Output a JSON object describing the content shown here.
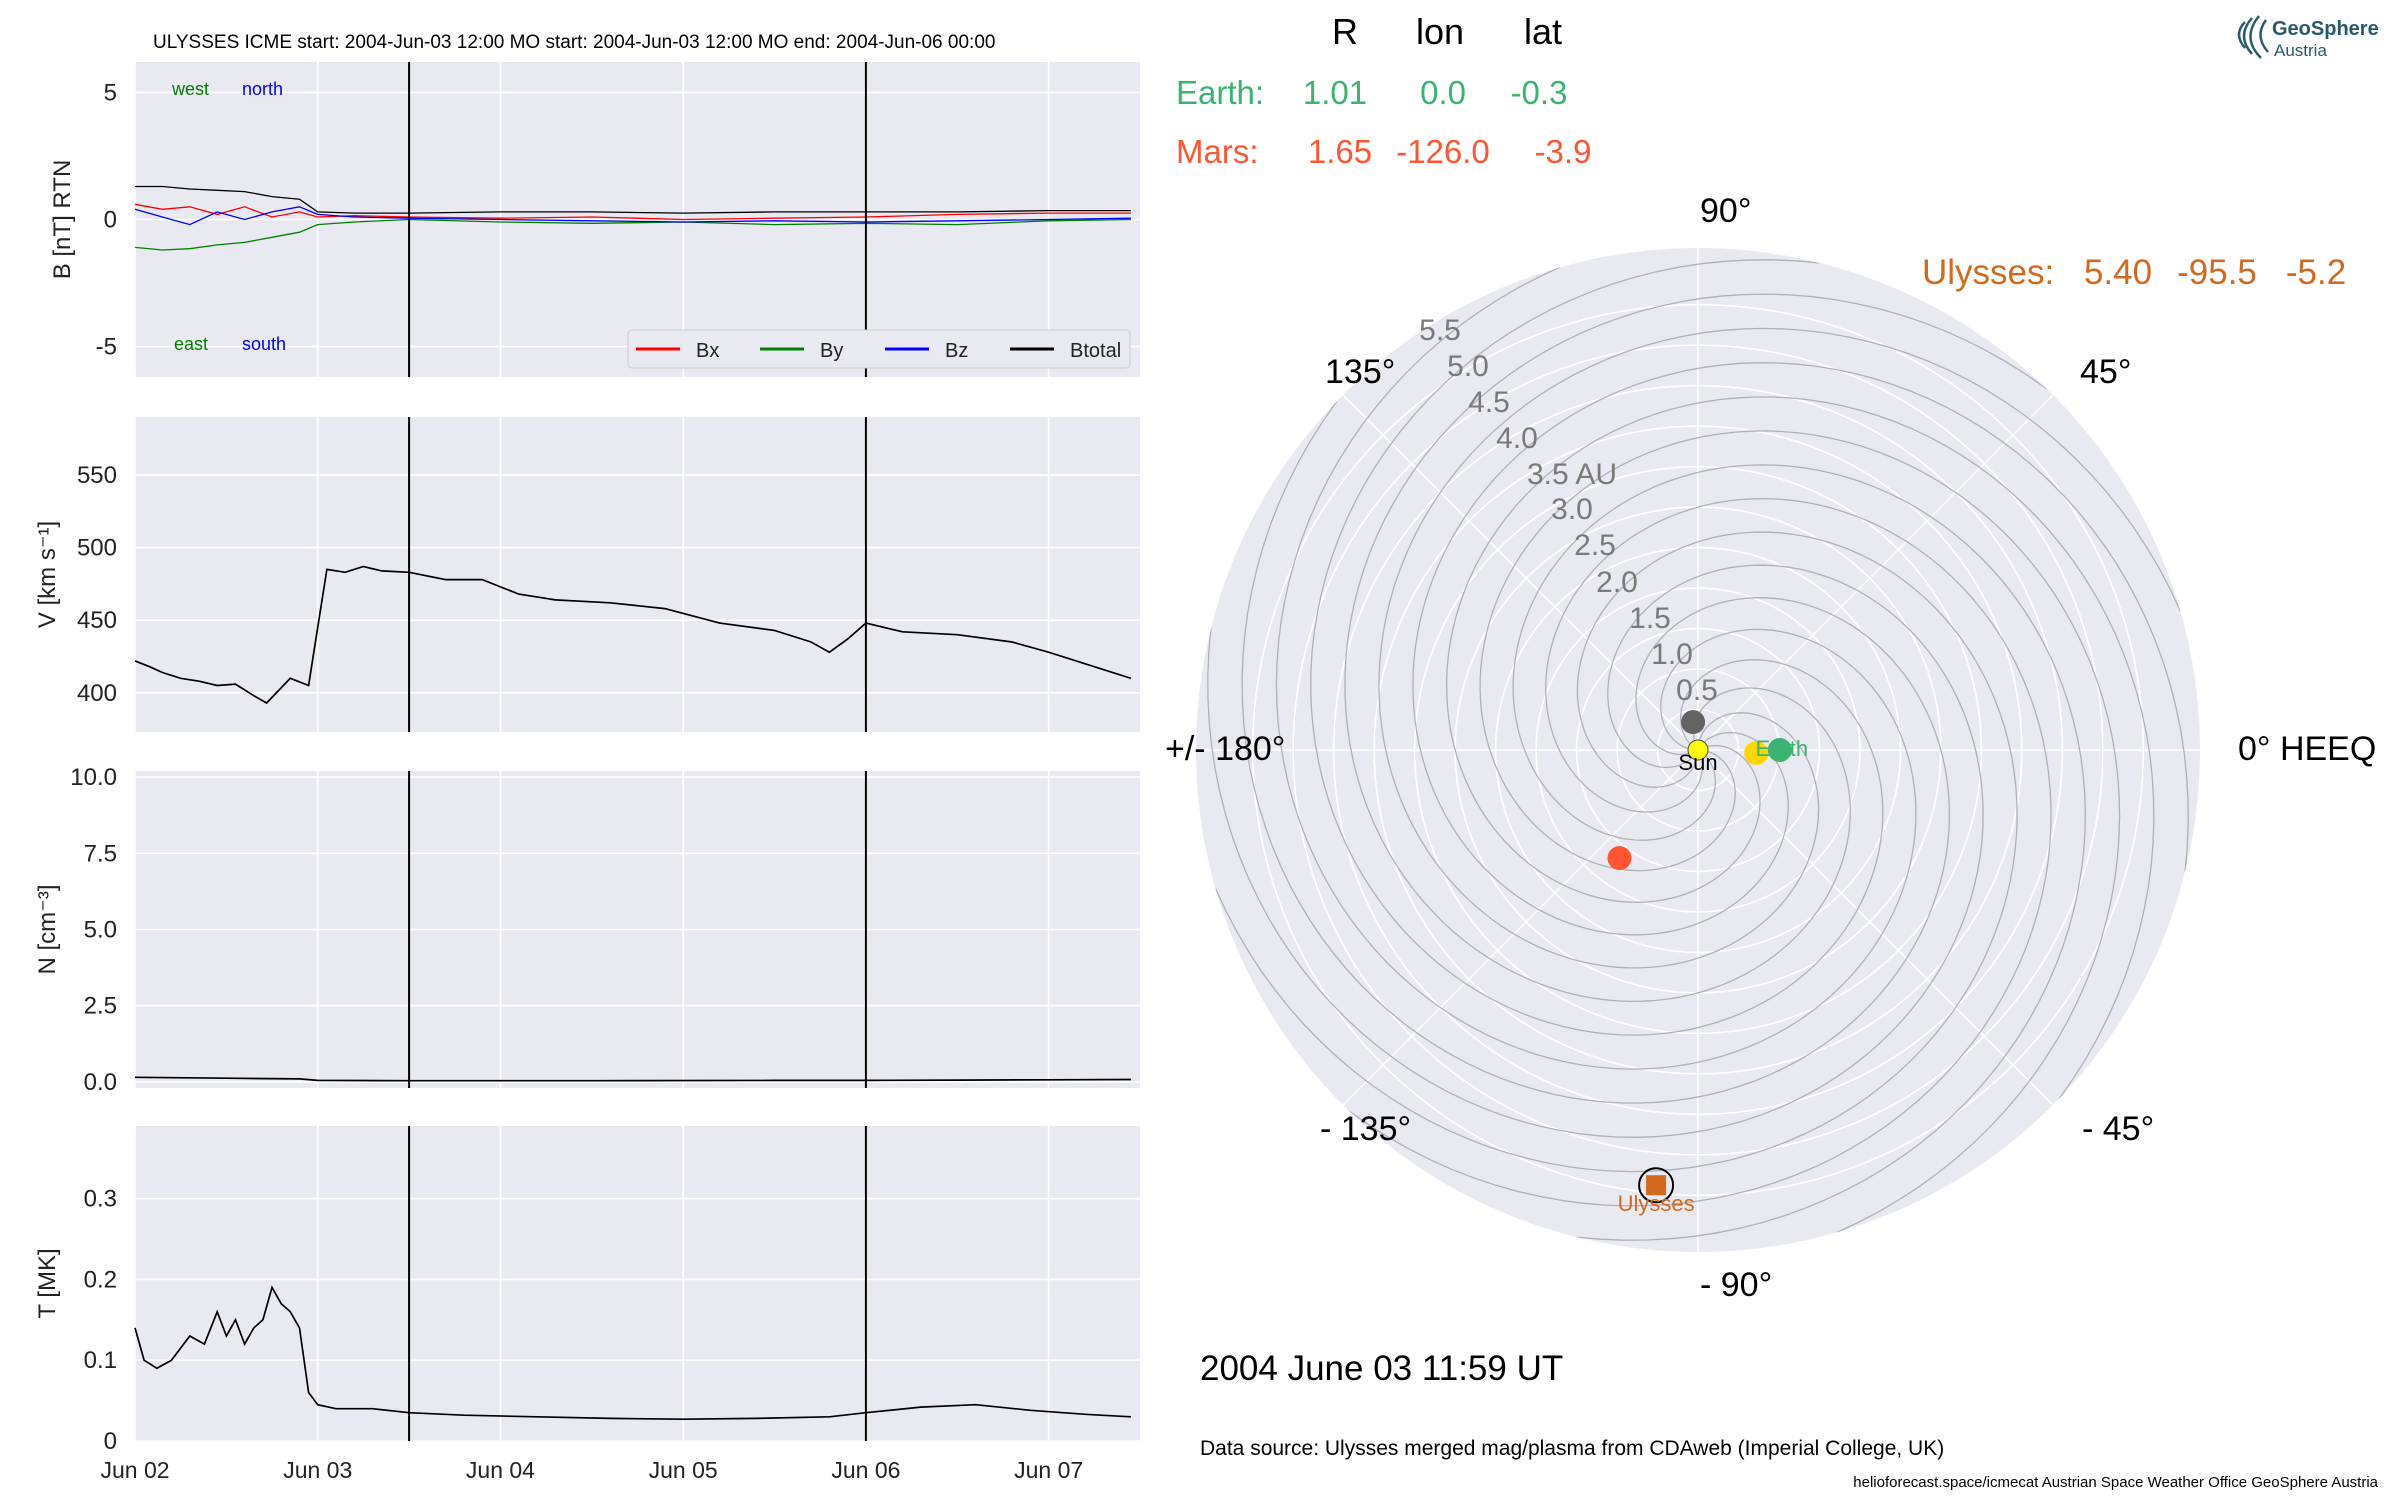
{
  "figure": {
    "header": "ULYSSES    ICME start: 2004-Jun-03 12:00   MO start: 2004-Jun-03 12:00   MO end: 2004-Jun-06 00:00",
    "date_label": "2004 June 03  11:59 UT",
    "source_label": "Data source: Ulysses merged mag/plasma from CDAweb (Imperial College, UK)",
    "footer_label": "helioforecast.space/icmecat   Austrian Space Weather Office   GeoSphere Austria",
    "logo_line1": "GeoSphere",
    "logo_line2": "Austria"
  },
  "colors": {
    "panel_bg": "#e9e9f1",
    "Bx": "#ff0000",
    "By": "#008000",
    "Bz": "#0000ff",
    "Btotal": "#000000",
    "earth": "#3cb371",
    "mars": "#ff5533",
    "ulysses": "#d2691e",
    "venus": "#ffd700",
    "mercury": "#636363",
    "sun": "#ffff00"
  },
  "chart_data": [
    {
      "type": "line",
      "id": "mag",
      "ylabel": "B [nT] RTN",
      "ylim": [
        -6.2,
        6.2
      ],
      "yticks": [
        5,
        0,
        -5
      ],
      "xticks": [
        "Jun 02",
        "Jun 03",
        "Jun 04",
        "Jun 05",
        "Jun 06",
        "Jun 07"
      ],
      "xlim_days": [
        2.0,
        7.5
      ],
      "corner_labels": {
        "west": "west",
        "north": "north",
        "east": "east",
        "south": "south"
      },
      "legend": [
        "Bx",
        "By",
        "Bz",
        "Btotal"
      ],
      "vlines_days": [
        3.5,
        6.0
      ],
      "series": [
        {
          "name": "Bx",
          "x": [
            2.0,
            2.15,
            2.3,
            2.45,
            2.6,
            2.75,
            2.9,
            3.0,
            3.2,
            3.5,
            4.0,
            4.5,
            5.0,
            5.5,
            6.0,
            6.5,
            7.0,
            7.45
          ],
          "y": [
            0.6,
            0.4,
            0.5,
            0.2,
            0.5,
            0.1,
            0.3,
            0.1,
            0.15,
            0.1,
            0.05,
            0.1,
            0.0,
            0.05,
            0.1,
            0.2,
            0.25,
            0.25
          ]
        },
        {
          "name": "By",
          "x": [
            2.0,
            2.15,
            2.3,
            2.45,
            2.6,
            2.75,
            2.9,
            3.0,
            3.2,
            3.5,
            4.0,
            4.5,
            5.0,
            5.5,
            6.0,
            6.5,
            7.0,
            7.45
          ],
          "y": [
            -1.1,
            -1.2,
            -1.15,
            -1.0,
            -0.9,
            -0.7,
            -0.5,
            -0.2,
            -0.1,
            0.0,
            -0.1,
            -0.15,
            -0.1,
            -0.2,
            -0.15,
            -0.2,
            -0.05,
            0.0
          ]
        },
        {
          "name": "Bz",
          "x": [
            2.0,
            2.15,
            2.3,
            2.45,
            2.6,
            2.75,
            2.9,
            3.0,
            3.2,
            3.5,
            4.0,
            4.5,
            5.0,
            5.5,
            6.0,
            6.5,
            7.0,
            7.45
          ],
          "y": [
            0.4,
            0.1,
            -0.2,
            0.3,
            0.0,
            0.3,
            0.5,
            0.2,
            0.1,
            0.05,
            0.0,
            -0.05,
            -0.1,
            -0.05,
            -0.1,
            -0.05,
            0.0,
            0.05
          ]
        },
        {
          "name": "Btotal",
          "x": [
            2.0,
            2.15,
            2.3,
            2.45,
            2.6,
            2.75,
            2.9,
            3.0,
            3.2,
            3.5,
            4.0,
            4.5,
            5.0,
            5.5,
            6.0,
            6.5,
            7.0,
            7.45
          ],
          "y": [
            1.3,
            1.3,
            1.2,
            1.15,
            1.1,
            0.9,
            0.8,
            0.3,
            0.25,
            0.25,
            0.3,
            0.3,
            0.25,
            0.3,
            0.3,
            0.3,
            0.35,
            0.35
          ]
        }
      ]
    },
    {
      "type": "line",
      "id": "speed",
      "ylabel": "V [km s⁻¹]",
      "ylim": [
        373,
        590
      ],
      "yticks": [
        550,
        500,
        450,
        400
      ],
      "xticks": [
        "Jun 02",
        "Jun 03",
        "Jun 04",
        "Jun 05",
        "Jun 06",
        "Jun 07"
      ],
      "xlim_days": [
        2.0,
        7.5
      ],
      "vlines_days": [
        3.5,
        6.0
      ],
      "series": [
        {
          "name": "V",
          "x": [
            2.0,
            2.08,
            2.15,
            2.25,
            2.35,
            2.45,
            2.55,
            2.65,
            2.72,
            2.85,
            2.95,
            3.0,
            3.05,
            3.15,
            3.25,
            3.35,
            3.5,
            3.7,
            3.9,
            4.1,
            4.3,
            4.6,
            4.9,
            5.2,
            5.5,
            5.7,
            5.8,
            5.9,
            6.0,
            6.2,
            6.5,
            6.8,
            7.0,
            7.2,
            7.45
          ],
          "y": [
            422,
            418,
            414,
            410,
            408,
            405,
            406,
            398,
            393,
            410,
            405,
            445,
            485,
            483,
            487,
            484,
            483,
            478,
            478,
            468,
            464,
            462,
            458,
            448,
            443,
            435,
            428,
            437,
            448,
            442,
            440,
            435,
            428,
            420,
            410
          ]
        }
      ]
    },
    {
      "type": "line",
      "id": "density",
      "ylabel": "N [cm⁻³]",
      "ylim": [
        -0.2,
        10.2
      ],
      "yticks": [
        10.0,
        7.5,
        5.0,
        2.5,
        0.0
      ],
      "xticks": [
        "Jun 02",
        "Jun 03",
        "Jun 04",
        "Jun 05",
        "Jun 06",
        "Jun 07"
      ],
      "xlim_days": [
        2.0,
        7.5
      ],
      "vlines_days": [
        3.5,
        6.0
      ],
      "series": [
        {
          "name": "N",
          "x": [
            2.0,
            2.5,
            2.9,
            3.0,
            3.5,
            4.5,
            5.5,
            6.0,
            6.5,
            7.0,
            7.45
          ],
          "y": [
            0.15,
            0.12,
            0.1,
            0.05,
            0.04,
            0.04,
            0.05,
            0.05,
            0.06,
            0.07,
            0.08
          ]
        }
      ]
    },
    {
      "type": "line",
      "id": "temperature",
      "ylabel": "T [MK]",
      "ylim": [
        0.0,
        0.39
      ],
      "yticks": [
        0.3,
        0.2,
        0.1,
        0.0
      ],
      "xticks": [
        "Jun 02",
        "Jun 03",
        "Jun 04",
        "Jun 05",
        "Jun 06",
        "Jun 07"
      ],
      "xlim_days": [
        2.0,
        7.5
      ],
      "vlines_days": [
        3.5,
        6.0
      ],
      "series": [
        {
          "name": "T",
          "x": [
            2.0,
            2.05,
            2.12,
            2.2,
            2.3,
            2.38,
            2.45,
            2.5,
            2.55,
            2.6,
            2.65,
            2.7,
            2.75,
            2.8,
            2.85,
            2.9,
            2.95,
            3.0,
            3.1,
            3.3,
            3.5,
            3.8,
            4.2,
            4.6,
            5.0,
            5.4,
            5.8,
            6.0,
            6.3,
            6.6,
            6.9,
            7.2,
            7.45
          ],
          "y": [
            0.14,
            0.1,
            0.09,
            0.1,
            0.13,
            0.12,
            0.16,
            0.13,
            0.15,
            0.12,
            0.14,
            0.15,
            0.19,
            0.17,
            0.16,
            0.14,
            0.06,
            0.045,
            0.04,
            0.04,
            0.035,
            0.032,
            0.03,
            0.028,
            0.027,
            0.028,
            0.03,
            0.035,
            0.042,
            0.045,
            0.038,
            0.033,
            0.03
          ]
        }
      ]
    },
    {
      "type": "scatter",
      "id": "polar",
      "projection": "polar",
      "rmax_au": 6.2,
      "r_ticks": [
        "0.5",
        "1.0",
        "1.5",
        "2.0",
        "2.5",
        "3.0",
        "3.5 AU",
        "4.0",
        "4.5",
        "5.0",
        "5.5"
      ],
      "r_tick_values": [
        0.5,
        1.0,
        1.5,
        2.0,
        2.5,
        3.0,
        3.5,
        4.0,
        4.5,
        5.0,
        5.5
      ],
      "angle_ticks": [
        "0° HEEQ",
        "45°",
        "90°",
        "135°",
        "+/- 180°",
        "- 135°",
        "- 90°",
        "- 45°"
      ],
      "angle_tick_degrees": [
        0,
        45,
        90,
        135,
        180,
        225,
        270,
        315
      ],
      "table_header": {
        "R": "R",
        "lon": "lon",
        "lat": "lat"
      },
      "table_rows": [
        {
          "name": "Earth:",
          "R": "1.01",
          "lon": "0.0",
          "lat": "-0.3"
        },
        {
          "name": "Mars:",
          "R": "1.65",
          "lon": "-126.0",
          "lat": "-3.9"
        }
      ],
      "ulysses_row": {
        "name": "Ulysses:",
        "R": "5.40",
        "lon": "-95.5",
        "lat": "-5.2"
      },
      "bodies": [
        {
          "name": "Mercury",
          "r": 0.35,
          "lon": 100,
          "label": ""
        },
        {
          "name": "Venus",
          "r": 0.72,
          "lon": -3,
          "label": ""
        },
        {
          "name": "Earth",
          "r": 1.01,
          "lon": 0.0,
          "label": "Earth"
        },
        {
          "name": "Mars",
          "r": 1.65,
          "lon": -126.0,
          "label": ""
        },
        {
          "name": "Ulysses",
          "r": 5.4,
          "lon": -95.5,
          "label": "Ulysses"
        }
      ],
      "sun_label": "Sun",
      "spiral_count": 12
    }
  ]
}
